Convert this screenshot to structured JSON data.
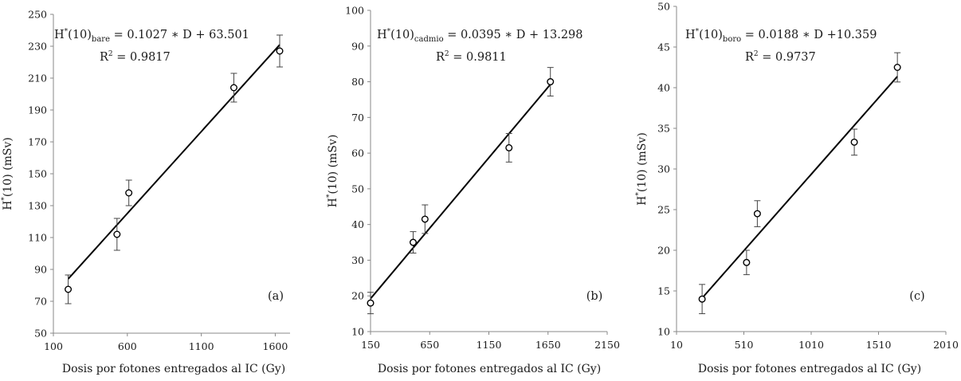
{
  "chart_data": [
    {
      "type": "scatter",
      "x": [
        200,
        530,
        610,
        1320,
        1630
      ],
      "y": [
        77.5,
        112,
        138,
        204,
        227
      ],
      "yerr": [
        9,
        10,
        8,
        9,
        10
      ],
      "trendline": {
        "slope": 0.1027,
        "intercept": 63.501
      },
      "xlim": [
        100,
        1700
      ],
      "ylim": [
        50,
        250
      ],
      "xticks": [
        "100",
        "600",
        "1100",
        "1600"
      ],
      "yticks": [
        "50",
        "70",
        "90",
        "110",
        "130",
        "150",
        "170",
        "190",
        "210",
        "230",
        "250"
      ],
      "equation": {
        "lhs": "H",
        "sup": "*",
        "arg": "(10)",
        "sub": "bare",
        "rhs": " = 0.1027 ∗ D + 63.501"
      },
      "r2": {
        "base": "R",
        "sup": "2",
        "value": " = 0.9817"
      },
      "panel_label": "(a)",
      "xlabel": "Dosis por fotones entregados al IC (Gy)",
      "ylabel": {
        "base": "H",
        "sup": "*",
        "rest": "(10) (mSv)"
      }
    },
    {
      "type": "scatter",
      "x": [
        150,
        510,
        610,
        1320,
        1670
      ],
      "y": [
        18,
        35,
        41.5,
        61.5,
        80
      ],
      "yerr": [
        3,
        3,
        4,
        4,
        4
      ],
      "trendline": {
        "slope": 0.0395,
        "intercept": 13.298
      },
      "xlim": [
        150,
        2150
      ],
      "ylim": [
        10,
        100
      ],
      "xticks": [
        "150",
        "650",
        "1150",
        "1650",
        "2150"
      ],
      "yticks": [
        "10",
        "20",
        "30",
        "40",
        "50",
        "60",
        "70",
        "80",
        "90",
        "100"
      ],
      "equation": {
        "lhs": "H",
        "sup": "*",
        "arg": "(10)",
        "sub": "cadmio",
        "rhs": " = 0.0395 ∗ D + 13.298"
      },
      "r2": {
        "base": "R",
        "sup": "2",
        "value": " = 0.9811"
      },
      "panel_label": "(b)",
      "xlabel": "Dosis por fotones entregados al IC (Gy)",
      "ylabel": {
        "base": "H",
        "sup": "*",
        "rest": "(10) (mSv)"
      }
    },
    {
      "type": "scatter",
      "x": [
        200,
        530,
        610,
        1330,
        1650
      ],
      "y": [
        14,
        18.5,
        24.5,
        33.3,
        42.5
      ],
      "yerr": [
        1.8,
        1.5,
        1.6,
        1.6,
        1.8
      ],
      "trendline": {
        "slope": 0.0188,
        "intercept": 10.359
      },
      "xlim": [
        10,
        2010
      ],
      "ylim": [
        10,
        50
      ],
      "xticks": [
        "10",
        "510",
        "1010",
        "1510",
        "2010"
      ],
      "yticks": [
        "10",
        "15",
        "20",
        "25",
        "30",
        "35",
        "40",
        "45",
        "50"
      ],
      "equation": {
        "lhs": "H",
        "sup": "*",
        "arg": "(10)",
        "sub": "boro",
        "rhs": " = 0.0188 ∗ D +10.359"
      },
      "r2": {
        "base": "R",
        "sup": "2",
        "value": " = 0.9737"
      },
      "panel_label": "(c)",
      "xlabel": "Dosis por fotones entregados al IC (Gy)",
      "ylabel": {
        "base": "H",
        "sup": "*",
        "rest": "(10) (mSv)"
      }
    }
  ]
}
